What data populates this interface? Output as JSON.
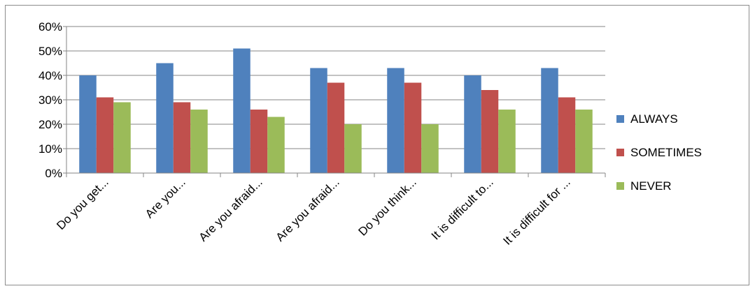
{
  "chart_data": {
    "type": "bar",
    "title": "",
    "xlabel": "",
    "ylabel": "",
    "ylim": [
      0,
      0.6
    ],
    "yticks": [
      "0%",
      "10%",
      "20%",
      "30%",
      "40%",
      "50%",
      "60%"
    ],
    "grid": true,
    "legend_position": "right",
    "categories": [
      "Do you get...",
      "Are you...",
      "Are you afraid...",
      "Are you afraid...",
      "Do you think...",
      "It is difficult to...",
      "It is difficult for ..."
    ],
    "series": [
      {
        "name": "ALWAYS",
        "color": "#4F81BD",
        "values": [
          0.4,
          0.45,
          0.51,
          0.43,
          0.43,
          0.4,
          0.43
        ]
      },
      {
        "name": "SOMETIMES",
        "color": "#C0504D",
        "values": [
          0.31,
          0.29,
          0.26,
          0.37,
          0.37,
          0.34,
          0.31
        ]
      },
      {
        "name": "NEVER",
        "color": "#9BBB59",
        "values": [
          0.29,
          0.26,
          0.23,
          0.2,
          0.2,
          0.26,
          0.26
        ]
      }
    ]
  }
}
